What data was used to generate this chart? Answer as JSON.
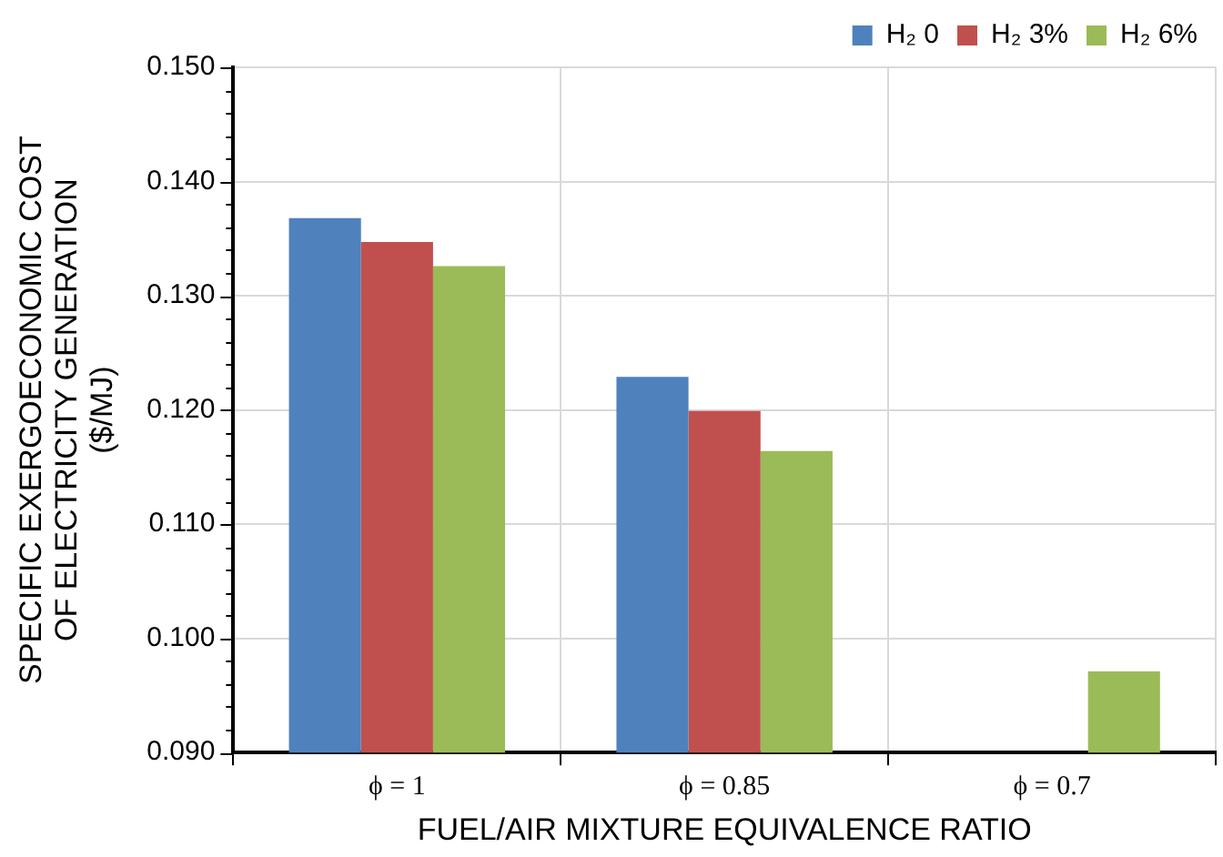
{
  "chart_data": {
    "type": "bar",
    "xlabel": "FUEL/AIR MIXTURE EQUIVALENCE RATIO",
    "ylabel": "SPECIFIC EXERGOECONOMIC COST OF ELECTRICITY GENERATION ($/MJ)",
    "categories": [
      "ϕ = 1",
      "ϕ = 0.85",
      "ϕ = 0.7"
    ],
    "series": [
      {
        "name": "H₂ 0",
        "color": "#4f81bd",
        "values": [
          0.1368,
          0.1229,
          null
        ]
      },
      {
        "name": "H₂ 3%",
        "color": "#c0504d",
        "values": [
          0.1347,
          0.1199,
          null
        ]
      },
      {
        "name": "H₂ 6%",
        "color": "#9bbb59",
        "values": [
          0.1326,
          0.1164,
          0.0971
        ]
      }
    ],
    "ylim": [
      0.09,
      0.15
    ],
    "yticks": [
      {
        "value": 0.09,
        "label": "0.090"
      },
      {
        "value": 0.092,
        "label": null
      },
      {
        "value": 0.094,
        "label": null
      },
      {
        "value": 0.096,
        "label": null
      },
      {
        "value": 0.098,
        "label": null
      },
      {
        "value": 0.1,
        "label": "0.100"
      },
      {
        "value": 0.102,
        "label": null
      },
      {
        "value": 0.104,
        "label": null
      },
      {
        "value": 0.106,
        "label": null
      },
      {
        "value": 0.108,
        "label": null
      },
      {
        "value": 0.11,
        "label": "0.110"
      },
      {
        "value": 0.112,
        "label": null
      },
      {
        "value": 0.114,
        "label": null
      },
      {
        "value": 0.116,
        "label": null
      },
      {
        "value": 0.118,
        "label": null
      },
      {
        "value": 0.12,
        "label": "0.120"
      },
      {
        "value": 0.122,
        "label": null
      },
      {
        "value": 0.124,
        "label": null
      },
      {
        "value": 0.126,
        "label": null
      },
      {
        "value": 0.128,
        "label": null
      },
      {
        "value": 0.13,
        "label": "0.130"
      },
      {
        "value": 0.132,
        "label": null
      },
      {
        "value": 0.134,
        "label": null
      },
      {
        "value": 0.136,
        "label": null
      },
      {
        "value": 0.138,
        "label": null
      },
      {
        "value": 0.14,
        "label": "0.140"
      },
      {
        "value": 0.142,
        "label": null
      },
      {
        "value": 0.144,
        "label": null
      },
      {
        "value": 0.146,
        "label": null
      },
      {
        "value": 0.148,
        "label": null
      },
      {
        "value": 0.15,
        "label": "0.150"
      }
    ],
    "grid": true,
    "legend": "top right"
  }
}
